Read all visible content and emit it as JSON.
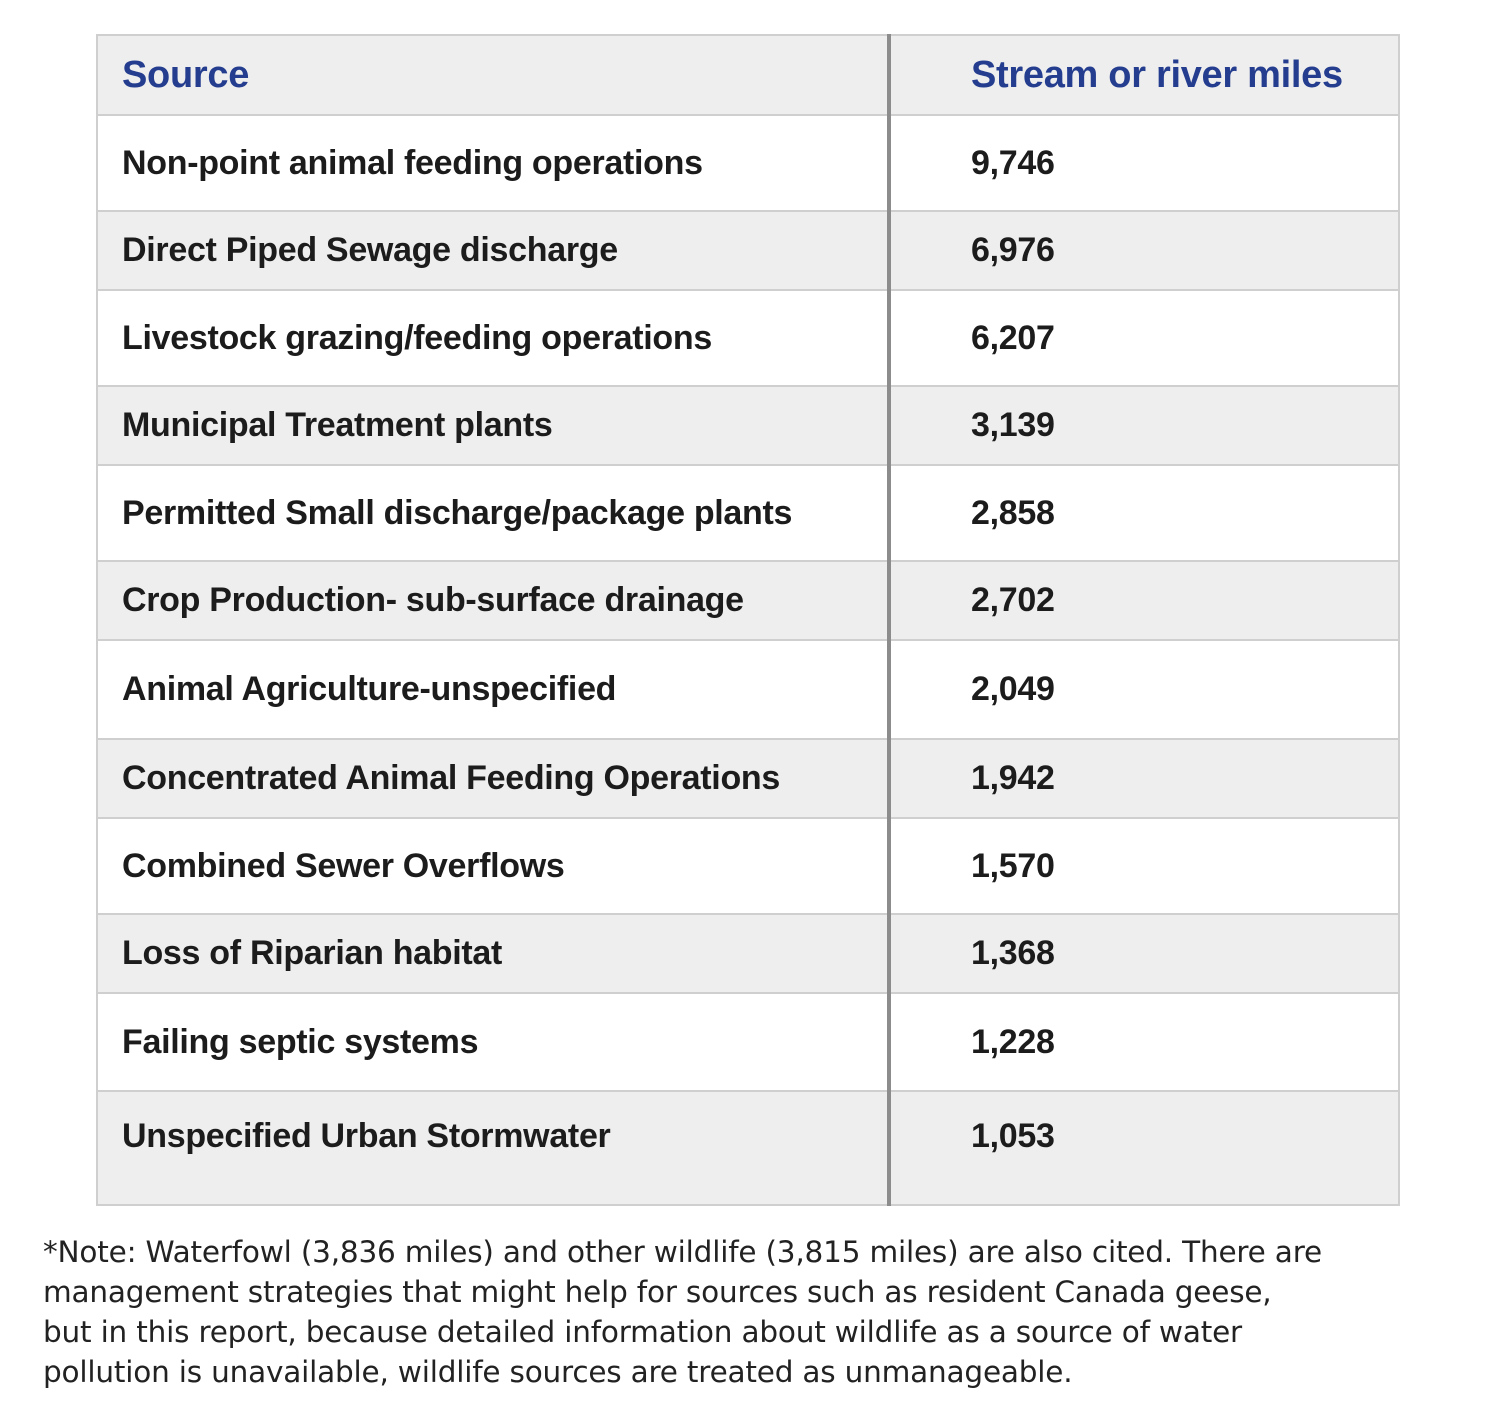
{
  "table": {
    "headers": [
      "Source",
      "Stream or river miles"
    ],
    "rows": [
      {
        "source": "Non-point animal feeding operations",
        "miles": "9,746"
      },
      {
        "source": "Direct Piped Sewage discharge",
        "miles": "6,976"
      },
      {
        "source": "Livestock grazing/feeding operations",
        "miles": "6,207"
      },
      {
        "source": "Municipal Treatment plants",
        "miles": "3,139"
      },
      {
        "source": "Permitted Small discharge/package plants",
        "miles": "2,858"
      },
      {
        "source": "Crop Production- sub-surface drainage",
        "miles": "2,702"
      },
      {
        "source": "Animal Agriculture-unspecified",
        "miles": "2,049"
      },
      {
        "source": "Concentrated Animal Feeding Operations",
        "miles": "1,942"
      },
      {
        "source": "Combined Sewer Overflows",
        "miles": "1,570"
      },
      {
        "source": "Loss of Riparian habitat",
        "miles": "1,368"
      },
      {
        "source": "Failing septic systems",
        "miles": "1,228"
      },
      {
        "source": "Unspecified Urban Stormwater",
        "miles": "1,053"
      }
    ]
  },
  "footnote": {
    "lines": [
      "*Note: Waterfowl (3,836 miles) and other wildlife (3,815 miles) are also cited. There are",
      "management strategies that might help for sources such as resident Canada geese,",
      "but in this report, because detailed information about wildlife as a source of water",
      "pollution is unavailable, wildlife sources are treated as unmanageable."
    ]
  },
  "colors": {
    "header_text": "#243d8f",
    "band_grey": "#eeeeee",
    "divider": "#8c8c8c"
  }
}
